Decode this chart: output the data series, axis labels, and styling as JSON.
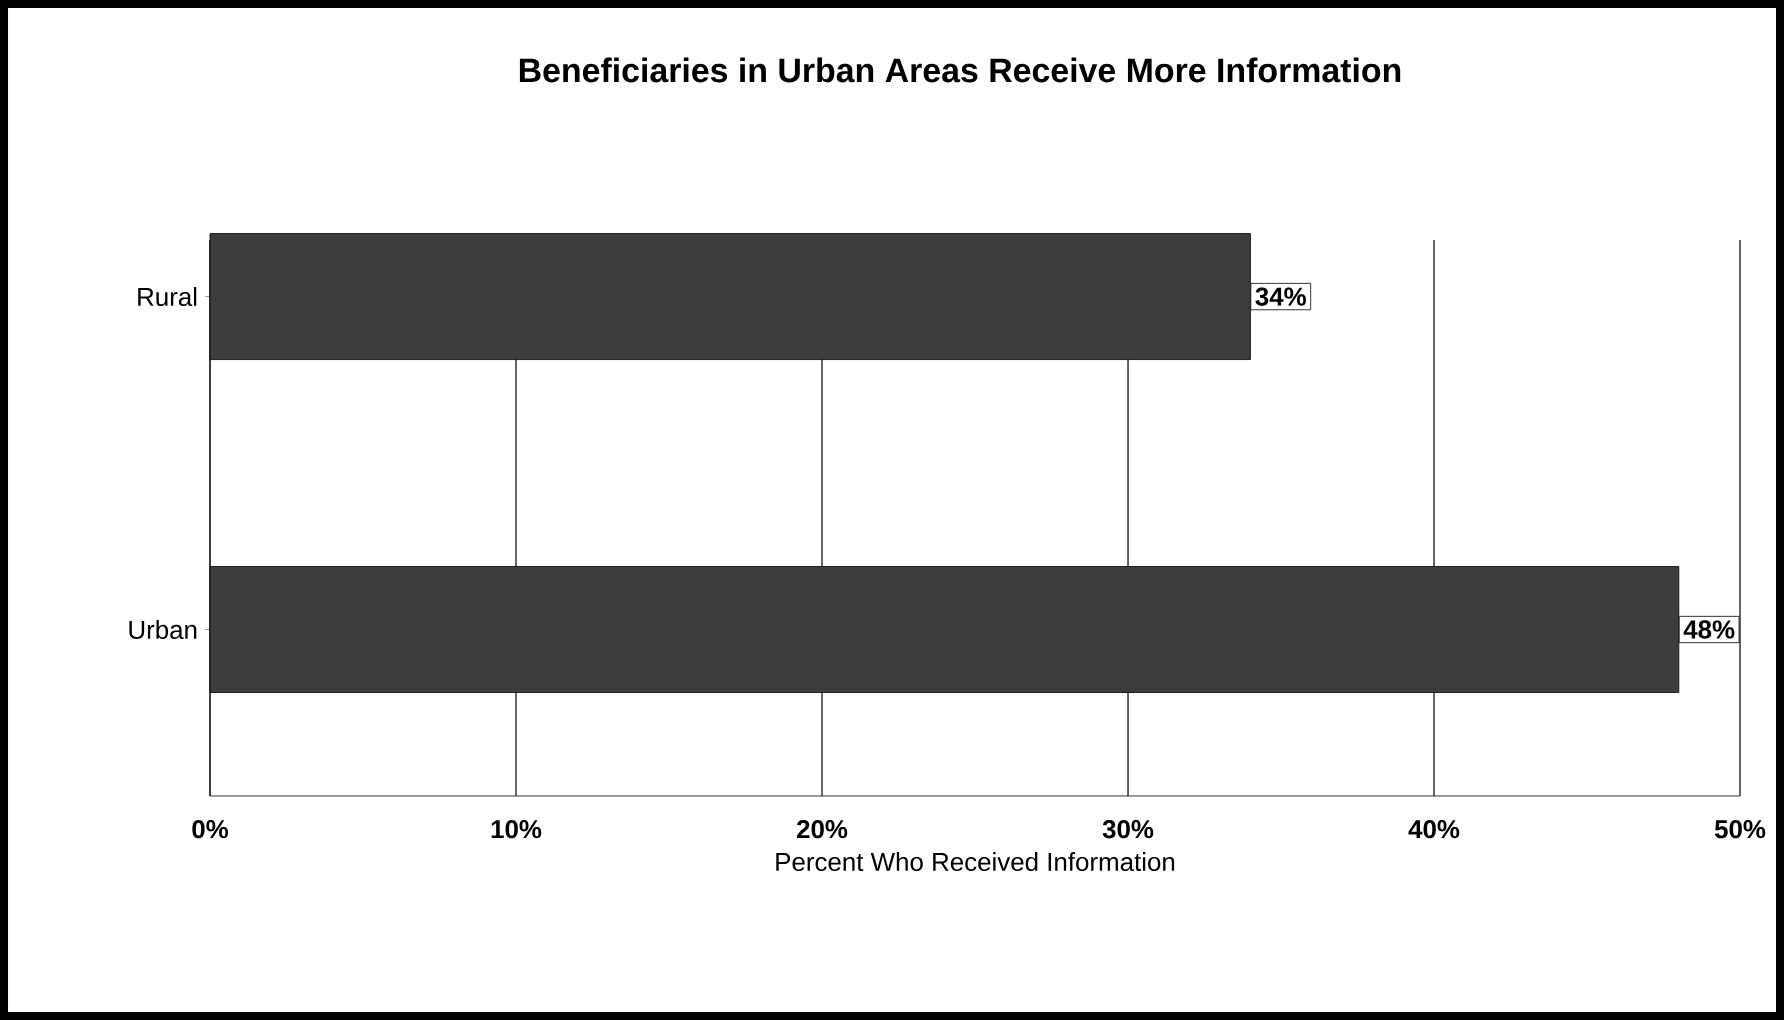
{
  "chart_data": {
    "type": "bar",
    "orientation": "horizontal",
    "title": "Beneficiaries in Urban Areas Receive More Information",
    "xlabel": "Percent Who Received Information",
    "categories": [
      "Rural",
      "Urban"
    ],
    "values": [
      34,
      48
    ],
    "value_labels": [
      "34%",
      "48%"
    ],
    "color": "#3c3c3c",
    "xlim": [
      0,
      50
    ],
    "xticks": [
      {
        "value": 0,
        "label": "0%"
      },
      {
        "value": 10,
        "label": "10%"
      },
      {
        "value": 20,
        "label": "20%"
      },
      {
        "value": 30,
        "label": "30%"
      },
      {
        "value": 40,
        "label": "40%"
      },
      {
        "value": 50,
        "label": "50%"
      }
    ],
    "grid": "x"
  }
}
